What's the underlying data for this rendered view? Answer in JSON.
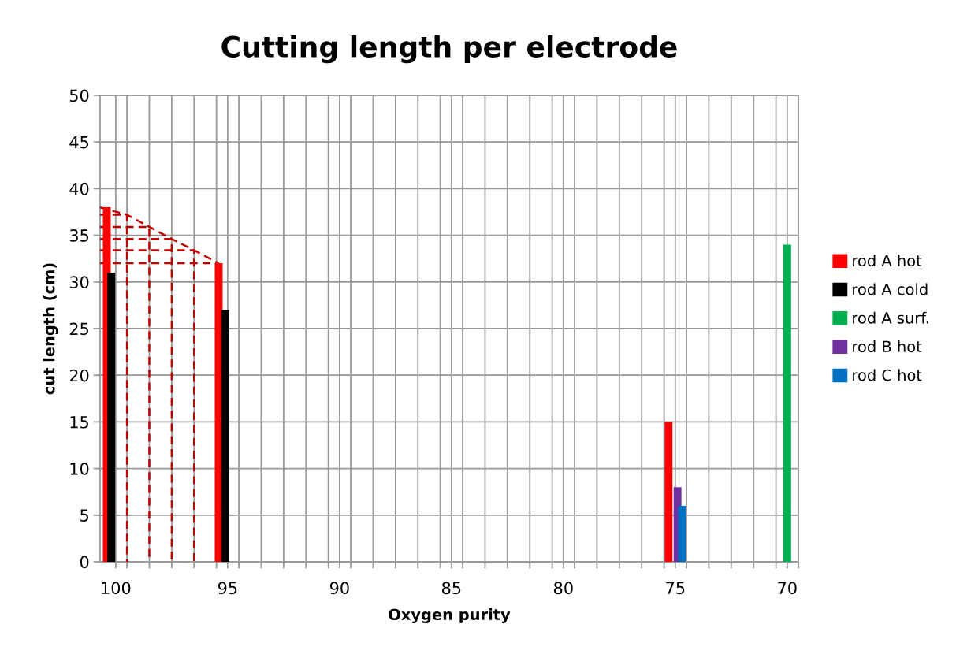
{
  "chart_data": {
    "type": "bar",
    "title": "Cutting length per electrode",
    "xlabel": "Oxygen purity",
    "ylabel": "cut length (cm)",
    "xlim": [
      100.7,
      69.5
    ],
    "xticks": [
      100,
      95,
      90,
      85,
      80,
      75,
      70,
      {
        "value": 99.5,
        "label": null
      },
      {
        "value": 98.5,
        "label": null
      },
      {
        "value": 97.5,
        "label": null
      },
      {
        "value": 96.5,
        "label": null
      },
      {
        "value": 95.5,
        "label": null
      },
      {
        "value": 94.5,
        "label": null
      },
      {
        "value": 93.5,
        "label": null
      },
      {
        "value": 92.5,
        "label": null
      },
      {
        "value": 91.5,
        "label": null
      },
      {
        "value": 90.5,
        "label": null
      },
      {
        "value": 89.5,
        "label": null
      },
      {
        "value": 88.5,
        "label": null
      },
      {
        "value": 87.5,
        "label": null
      },
      {
        "value": 86.5,
        "label": null
      },
      {
        "value": 85.5,
        "label": null
      },
      {
        "value": 84.5,
        "label": null
      },
      {
        "value": 83.5,
        "label": null
      },
      {
        "value": 82.5,
        "label": null
      },
      {
        "value": 81.5,
        "label": null
      },
      {
        "value": 80.5,
        "label": null
      },
      {
        "value": 79.5,
        "label": null
      },
      {
        "value": 78.5,
        "label": null
      },
      {
        "value": 77.5,
        "label": null
      },
      {
        "value": 76.5,
        "label": null
      },
      {
        "value": 75.5,
        "label": null
      },
      {
        "value": 74.5,
        "label": null
      },
      {
        "value": 73.5,
        "label": null
      },
      {
        "value": 72.5,
        "label": null
      },
      {
        "value": 71.5,
        "label": null
      },
      {
        "value": 70.5,
        "label": null
      },
      {
        "value": 69.5,
        "label": null
      }
    ],
    "ylim": [
      0,
      50
    ],
    "yticks": [
      0,
      5,
      10,
      15,
      20,
      25,
      30,
      35,
      40,
      45,
      50
    ],
    "grid": true,
    "legend": "right",
    "series": [
      {
        "type": "line",
        "color": "#c00000",
        "line_style": "dashed",
        "marker": "none",
        "x": [
          100.7,
          99.5,
          98.5,
          97.5,
          96.5,
          95.4
        ],
        "values": [
          38,
          37.2,
          35.9,
          34.6,
          33.4,
          32
        ]
      },
      {
        "type": "line",
        "color": "#c00000",
        "line_style": "dashed",
        "marker": "none",
        "x": [
          100.7,
          99.5,
          99.5
        ],
        "values": [
          37.2,
          37.2,
          0
        ]
      },
      {
        "type": "line",
        "color": "#c00000",
        "line_style": "dashed",
        "marker": "none",
        "x": [
          100.7,
          98.5,
          98.5
        ],
        "values": [
          35.9,
          35.9,
          0
        ]
      },
      {
        "type": "line",
        "color": "#c00000",
        "line_style": "dashed",
        "marker": "none",
        "x": [
          100.7,
          97.5,
          97.5
        ],
        "values": [
          34.6,
          34.6,
          0
        ]
      },
      {
        "type": "line",
        "color": "#c00000",
        "line_style": "dashed",
        "marker": "none",
        "x": [
          100.7,
          96.5,
          96.5
        ],
        "values": [
          33.4,
          33.4,
          0
        ]
      },
      {
        "type": "line",
        "color": "#c00000",
        "line_style": "dashed",
        "marker": "none",
        "x": [
          100.7,
          95.4
        ],
        "values": [
          32,
          32
        ]
      },
      {
        "name": "rod A hot",
        "color": "#ff0000",
        "x": [
          100.4,
          95.4,
          75.3
        ],
        "values": [
          38,
          32,
          15
        ]
      },
      {
        "name": "rod A cold",
        "color": "#000000",
        "x": [
          100.2,
          95.1
        ],
        "values": [
          31,
          27
        ]
      },
      {
        "name": "rod A surf.",
        "color": "#00b050",
        "x": [
          70
        ],
        "values": [
          34
        ]
      },
      {
        "name": "rod B hot",
        "color": "#7030a0",
        "x": [
          74.9
        ],
        "values": [
          8
        ]
      },
      {
        "name": "rod C hot",
        "color": "#0070c0",
        "x": [
          74.7
        ],
        "values": [
          6
        ]
      }
    ]
  }
}
